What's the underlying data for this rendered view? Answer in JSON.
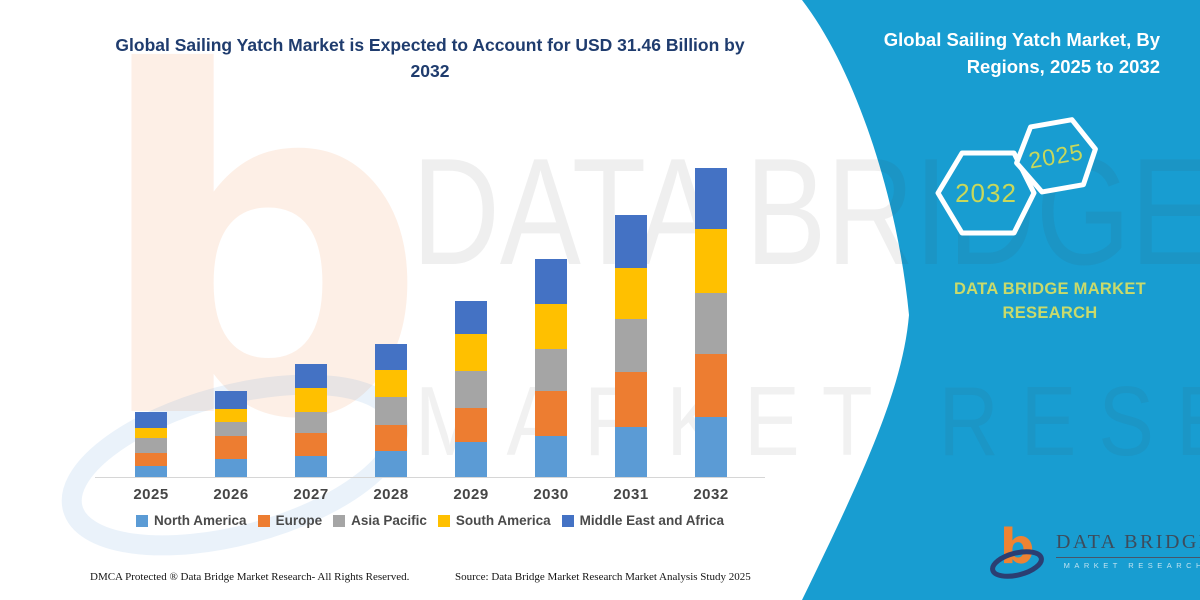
{
  "title": {
    "line1": "Global Sailing Yatch Market is Expected to Account for USD 31.46 Billion by",
    "line2": "2032"
  },
  "panel": {
    "heading_line1": "Global Sailing Yatch Market, By",
    "heading_line2": "Regions, 2025 to 2032",
    "hexagon_years": [
      "2032",
      "2025"
    ],
    "brand_name": "DATA BRIDGE MARKET RESEARCH"
  },
  "watermark": {
    "line1": "DATA BRIDGE",
    "line2": "MARKET RESEARCH",
    "logo_letter": "b"
  },
  "logo": {
    "name": "DATA BRIDGE",
    "subtitle": "MARKET RESEARCH"
  },
  "footer": {
    "left": "DMCA Protected ® Data Bridge Market Research-  All Rights Reserved.",
    "right": "Source: Data Bridge Market Research  Market Analysis Study 2025"
  },
  "colors": {
    "panel_teal": "#189DD1",
    "title_navy": "#1F3C6E",
    "axis_line": "#D6D6D6",
    "axis_text": "#454545",
    "hexagon_year_text": "#C8D85A",
    "brand_text": "#C9DA6B",
    "logo_orange": "#EE8333",
    "logo_navy": "#2B3E72",
    "logo_name_text": "#3D4C5C"
  },
  "chart_data": {
    "type": "bar",
    "stacked": true,
    "unit": "USD Billion",
    "title": "Global Sailing Yatch Market is Expected to Account for USD 31.46 Billion by 2032",
    "xlabel": "",
    "ylabel": "",
    "ylim": [
      0,
      33.4
    ],
    "grid": false,
    "legend_position": "bottom",
    "categories": [
      "2025",
      "2026",
      "2027",
      "2028",
      "2029",
      "2030",
      "2031",
      "2032"
    ],
    "series": [
      {
        "name": "North America",
        "color": "#5B9BD5",
        "values": [
          1.1,
          1.8,
          2.2,
          2.7,
          3.6,
          4.2,
          5.1,
          6.1
        ]
      },
      {
        "name": "Europe",
        "color": "#ED7D31",
        "values": [
          1.4,
          2.4,
          2.3,
          2.6,
          3.5,
          4.6,
          5.6,
          6.5
        ]
      },
      {
        "name": "Asia Pacific",
        "color": "#A5A5A5",
        "values": [
          1.5,
          1.4,
          2.1,
          2.9,
          3.7,
          4.3,
          5.5,
          6.2
        ]
      },
      {
        "name": "South America",
        "color": "#FFC000",
        "values": [
          1.0,
          1.4,
          2.5,
          2.7,
          3.8,
          4.6,
          5.2,
          6.5
        ]
      },
      {
        "name": "Middle East and Africa",
        "color": "#4472C4",
        "values": [
          1.6,
          1.8,
          2.4,
          2.7,
          3.4,
          4.6,
          5.4,
          6.3
        ]
      }
    ],
    "totals": [
      6.6,
      8.8,
      11.5,
      13.6,
      18.0,
      22.3,
      26.8,
      31.6
    ]
  }
}
